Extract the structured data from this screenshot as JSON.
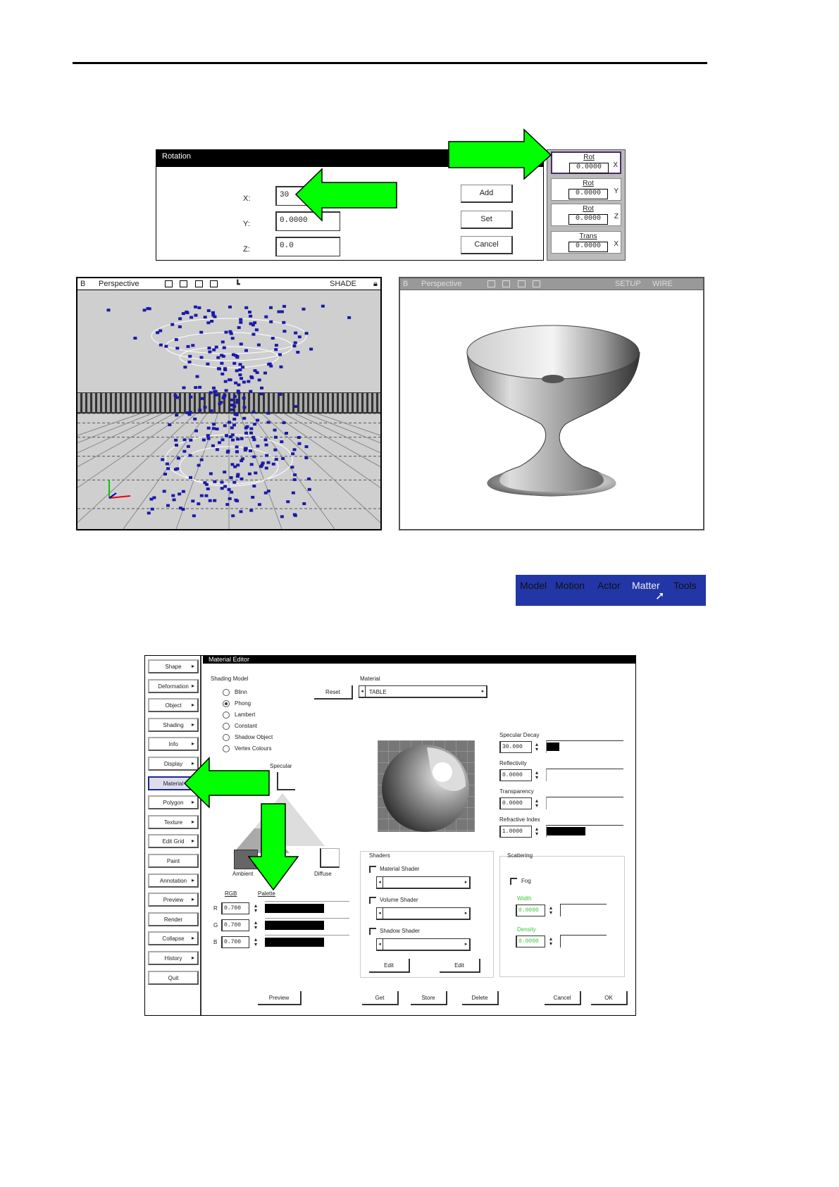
{
  "rotation_dialog": {
    "title": "Rotation",
    "fields": [
      {
        "label": "X:",
        "value": "30"
      },
      {
        "label": "Y:",
        "value": "0.0000"
      },
      {
        "label": "Z:",
        "value": "0.0"
      }
    ],
    "buttons": [
      "Add",
      "Set",
      "Cancel"
    ]
  },
  "transform_panel": {
    "items": [
      {
        "name": "Rot",
        "value": "0.0000",
        "axis": "X"
      },
      {
        "name": "Rot",
        "value": "0.0000",
        "axis": "Y"
      },
      {
        "name": "Rot",
        "value": "0.0000",
        "axis": "Z"
      },
      {
        "name": "Trans",
        "value": "0.0000",
        "axis": "X"
      }
    ]
  },
  "viewport_left": {
    "id": "B",
    "title": "Perspective",
    "mode": "SHADE"
  },
  "viewport_right": {
    "id": "B",
    "title": "Perspective",
    "modes": [
      "SETUP",
      "WIRE"
    ]
  },
  "menu_bar": {
    "items": [
      "Model",
      "Motion",
      "Actor",
      "Matter",
      "Tools"
    ],
    "active": "Matter"
  },
  "material_editor": {
    "title": "Material Editor",
    "left_menu": [
      "Shape",
      "Deformation",
      "Object",
      "Shading",
      "Info",
      "Display",
      "Material",
      "Polygon",
      "Texture",
      "Edit Grid",
      "Paint",
      "Annotation",
      "Preview",
      "Render",
      "Collapse",
      "History",
      "Quit"
    ],
    "left_menu_selected": "Material",
    "shading_model_label": "Shading Model",
    "shading_models": [
      "Blinn",
      "Phong",
      "Lambert",
      "Constant",
      "Shadow Object",
      "Vertex Colours"
    ],
    "shading_selected": "Phong",
    "reset_label": "Reset",
    "material_label": "Material",
    "material_value": "TABLE",
    "specular_label": "Specular",
    "ambient_label": "Ambient",
    "diffuse_label": "Diffuse",
    "color_tabs": [
      "RGB",
      "Palette"
    ],
    "rgb": [
      {
        "ch": "R",
        "value": "0.700"
      },
      {
        "ch": "G",
        "value": "0.700"
      },
      {
        "ch": "B",
        "value": "0.700"
      }
    ],
    "params": [
      {
        "label": "Specular Decay",
        "value": "30.000"
      },
      {
        "label": "Reflectivity",
        "value": "0.0000"
      },
      {
        "label": "Transparency",
        "value": "0.0000"
      },
      {
        "label": "Refractive Index",
        "value": "1.0000"
      }
    ],
    "shaders_label": "Shaders",
    "shaders": [
      "Material Shader",
      "Volume Shader",
      "Shadow Shader"
    ],
    "shader_buttons": [
      "Edit",
      "Edit"
    ],
    "scattering_label": "Scattering",
    "fog_label": "Fog",
    "scat_fields": [
      {
        "label": "Width",
        "value": "0.0000"
      },
      {
        "label": "Density",
        "value": "0.0000"
      }
    ],
    "bottom_buttons": [
      "Preview",
      "Get",
      "Store",
      "Delete",
      "Cancel",
      "OK"
    ]
  },
  "colors": {
    "arrow": "#00ff00",
    "menubar": "#2336a8",
    "points": "#1a1aa8"
  }
}
